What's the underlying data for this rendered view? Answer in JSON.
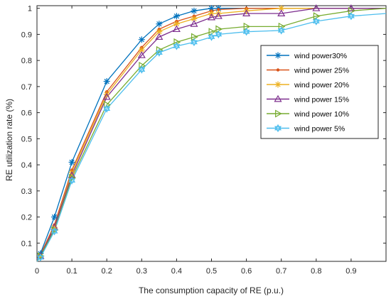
{
  "chart_data": {
    "type": "line",
    "title": "",
    "xlabel": "The consumption capacity of RE (p.u.)",
    "ylabel": "RE utilization rate (%)",
    "xlim": [
      0,
      1
    ],
    "ylim": [
      0.03,
      1.01
    ],
    "xticks": [
      "0",
      "0.1",
      "0.2",
      "0.3",
      "0.4",
      "0.5",
      "0.6",
      "0.7",
      "0.8",
      "0.9"
    ],
    "yticks": [
      "0.1",
      "0.2",
      "0.3",
      "0.4",
      "0.5",
      "0.6",
      "0.7",
      "0.8",
      "0.9",
      "1"
    ],
    "grid": false,
    "legend_position": "right",
    "series": [
      {
        "name": "wind power30%",
        "color": "#0072BD",
        "marker": "asterisk",
        "x": [
          0,
          0.01,
          0.05,
          0.1,
          0.2,
          0.3,
          0.35,
          0.4,
          0.45,
          0.5,
          0.52,
          0.6,
          0.7,
          0.8,
          0.9,
          1.0
        ],
        "y": [
          0.03,
          0.06,
          0.2,
          0.41,
          0.72,
          0.88,
          0.94,
          0.97,
          0.99,
          1.0,
          1.0,
          1.0,
          1.0,
          1.0,
          1.0,
          1.0
        ],
        "markers_x": [
          0.01,
          0.05,
          0.1,
          0.2,
          0.3,
          0.35,
          0.4,
          0.45,
          0.5,
          0.52
        ]
      },
      {
        "name": "wind power 25%",
        "color": "#D95319",
        "marker": "point",
        "x": [
          0,
          0.01,
          0.05,
          0.1,
          0.2,
          0.3,
          0.35,
          0.4,
          0.45,
          0.5,
          0.52,
          0.6,
          0.7,
          0.8,
          0.9,
          1.0
        ],
        "y": [
          0.03,
          0.055,
          0.17,
          0.38,
          0.68,
          0.85,
          0.92,
          0.95,
          0.97,
          0.99,
          0.995,
          1.0,
          1.0,
          1.0,
          1.0,
          1.0
        ],
        "markers_x": [
          0.01,
          0.05,
          0.1,
          0.2,
          0.3,
          0.35,
          0.4,
          0.45,
          0.5,
          0.52,
          0.6
        ]
      },
      {
        "name": "wind power 20%",
        "color": "#EDB120",
        "marker": "asterisk",
        "x": [
          0,
          0.01,
          0.05,
          0.1,
          0.2,
          0.3,
          0.35,
          0.4,
          0.45,
          0.5,
          0.52,
          0.6,
          0.7,
          0.8,
          0.9,
          1.0
        ],
        "y": [
          0.03,
          0.05,
          0.16,
          0.37,
          0.67,
          0.84,
          0.91,
          0.94,
          0.96,
          0.98,
          0.98,
          0.99,
          1.0,
          1.0,
          1.0,
          1.0
        ],
        "markers_x": [
          0.01,
          0.05,
          0.1,
          0.2,
          0.3,
          0.35,
          0.4,
          0.45,
          0.5,
          0.52,
          0.6,
          0.7
        ]
      },
      {
        "name": "wind power 15%",
        "color": "#7E2F8E",
        "marker": "triangle",
        "x": [
          0,
          0.01,
          0.05,
          0.1,
          0.2,
          0.3,
          0.35,
          0.4,
          0.45,
          0.5,
          0.52,
          0.6,
          0.7,
          0.8,
          0.9,
          1.0
        ],
        "y": [
          0.03,
          0.05,
          0.16,
          0.36,
          0.66,
          0.82,
          0.89,
          0.92,
          0.94,
          0.965,
          0.97,
          0.98,
          0.98,
          1.0,
          1.0,
          1.0
        ],
        "markers_x": [
          0.01,
          0.05,
          0.1,
          0.2,
          0.3,
          0.35,
          0.4,
          0.45,
          0.5,
          0.52,
          0.6,
          0.7,
          0.8,
          0.9
        ]
      },
      {
        "name": "wind power 10%",
        "color": "#77AC30",
        "marker": "triangle-right",
        "x": [
          0,
          0.01,
          0.05,
          0.1,
          0.2,
          0.3,
          0.35,
          0.4,
          0.45,
          0.5,
          0.52,
          0.6,
          0.7,
          0.8,
          0.9,
          1.0
        ],
        "y": [
          0.03,
          0.05,
          0.15,
          0.35,
          0.63,
          0.78,
          0.84,
          0.87,
          0.89,
          0.91,
          0.92,
          0.93,
          0.93,
          0.97,
          0.99,
          1.0
        ],
        "markers_x": [
          0.01,
          0.05,
          0.1,
          0.2,
          0.3,
          0.35,
          0.4,
          0.45,
          0.5,
          0.52,
          0.6,
          0.7,
          0.8,
          0.9
        ]
      },
      {
        "name": "wind power 5%",
        "color": "#4DBEEE",
        "marker": "hexagram",
        "x": [
          0,
          0.01,
          0.05,
          0.1,
          0.2,
          0.3,
          0.35,
          0.4,
          0.45,
          0.5,
          0.52,
          0.6,
          0.7,
          0.8,
          0.9,
          1.0
        ],
        "y": [
          0.03,
          0.045,
          0.145,
          0.34,
          0.615,
          0.765,
          0.83,
          0.855,
          0.87,
          0.89,
          0.9,
          0.91,
          0.915,
          0.95,
          0.97,
          0.98
        ],
        "markers_x": [
          0.01,
          0.05,
          0.1,
          0.2,
          0.3,
          0.35,
          0.4,
          0.45,
          0.5,
          0.52,
          0.6,
          0.7,
          0.8,
          0.9
        ]
      }
    ]
  }
}
